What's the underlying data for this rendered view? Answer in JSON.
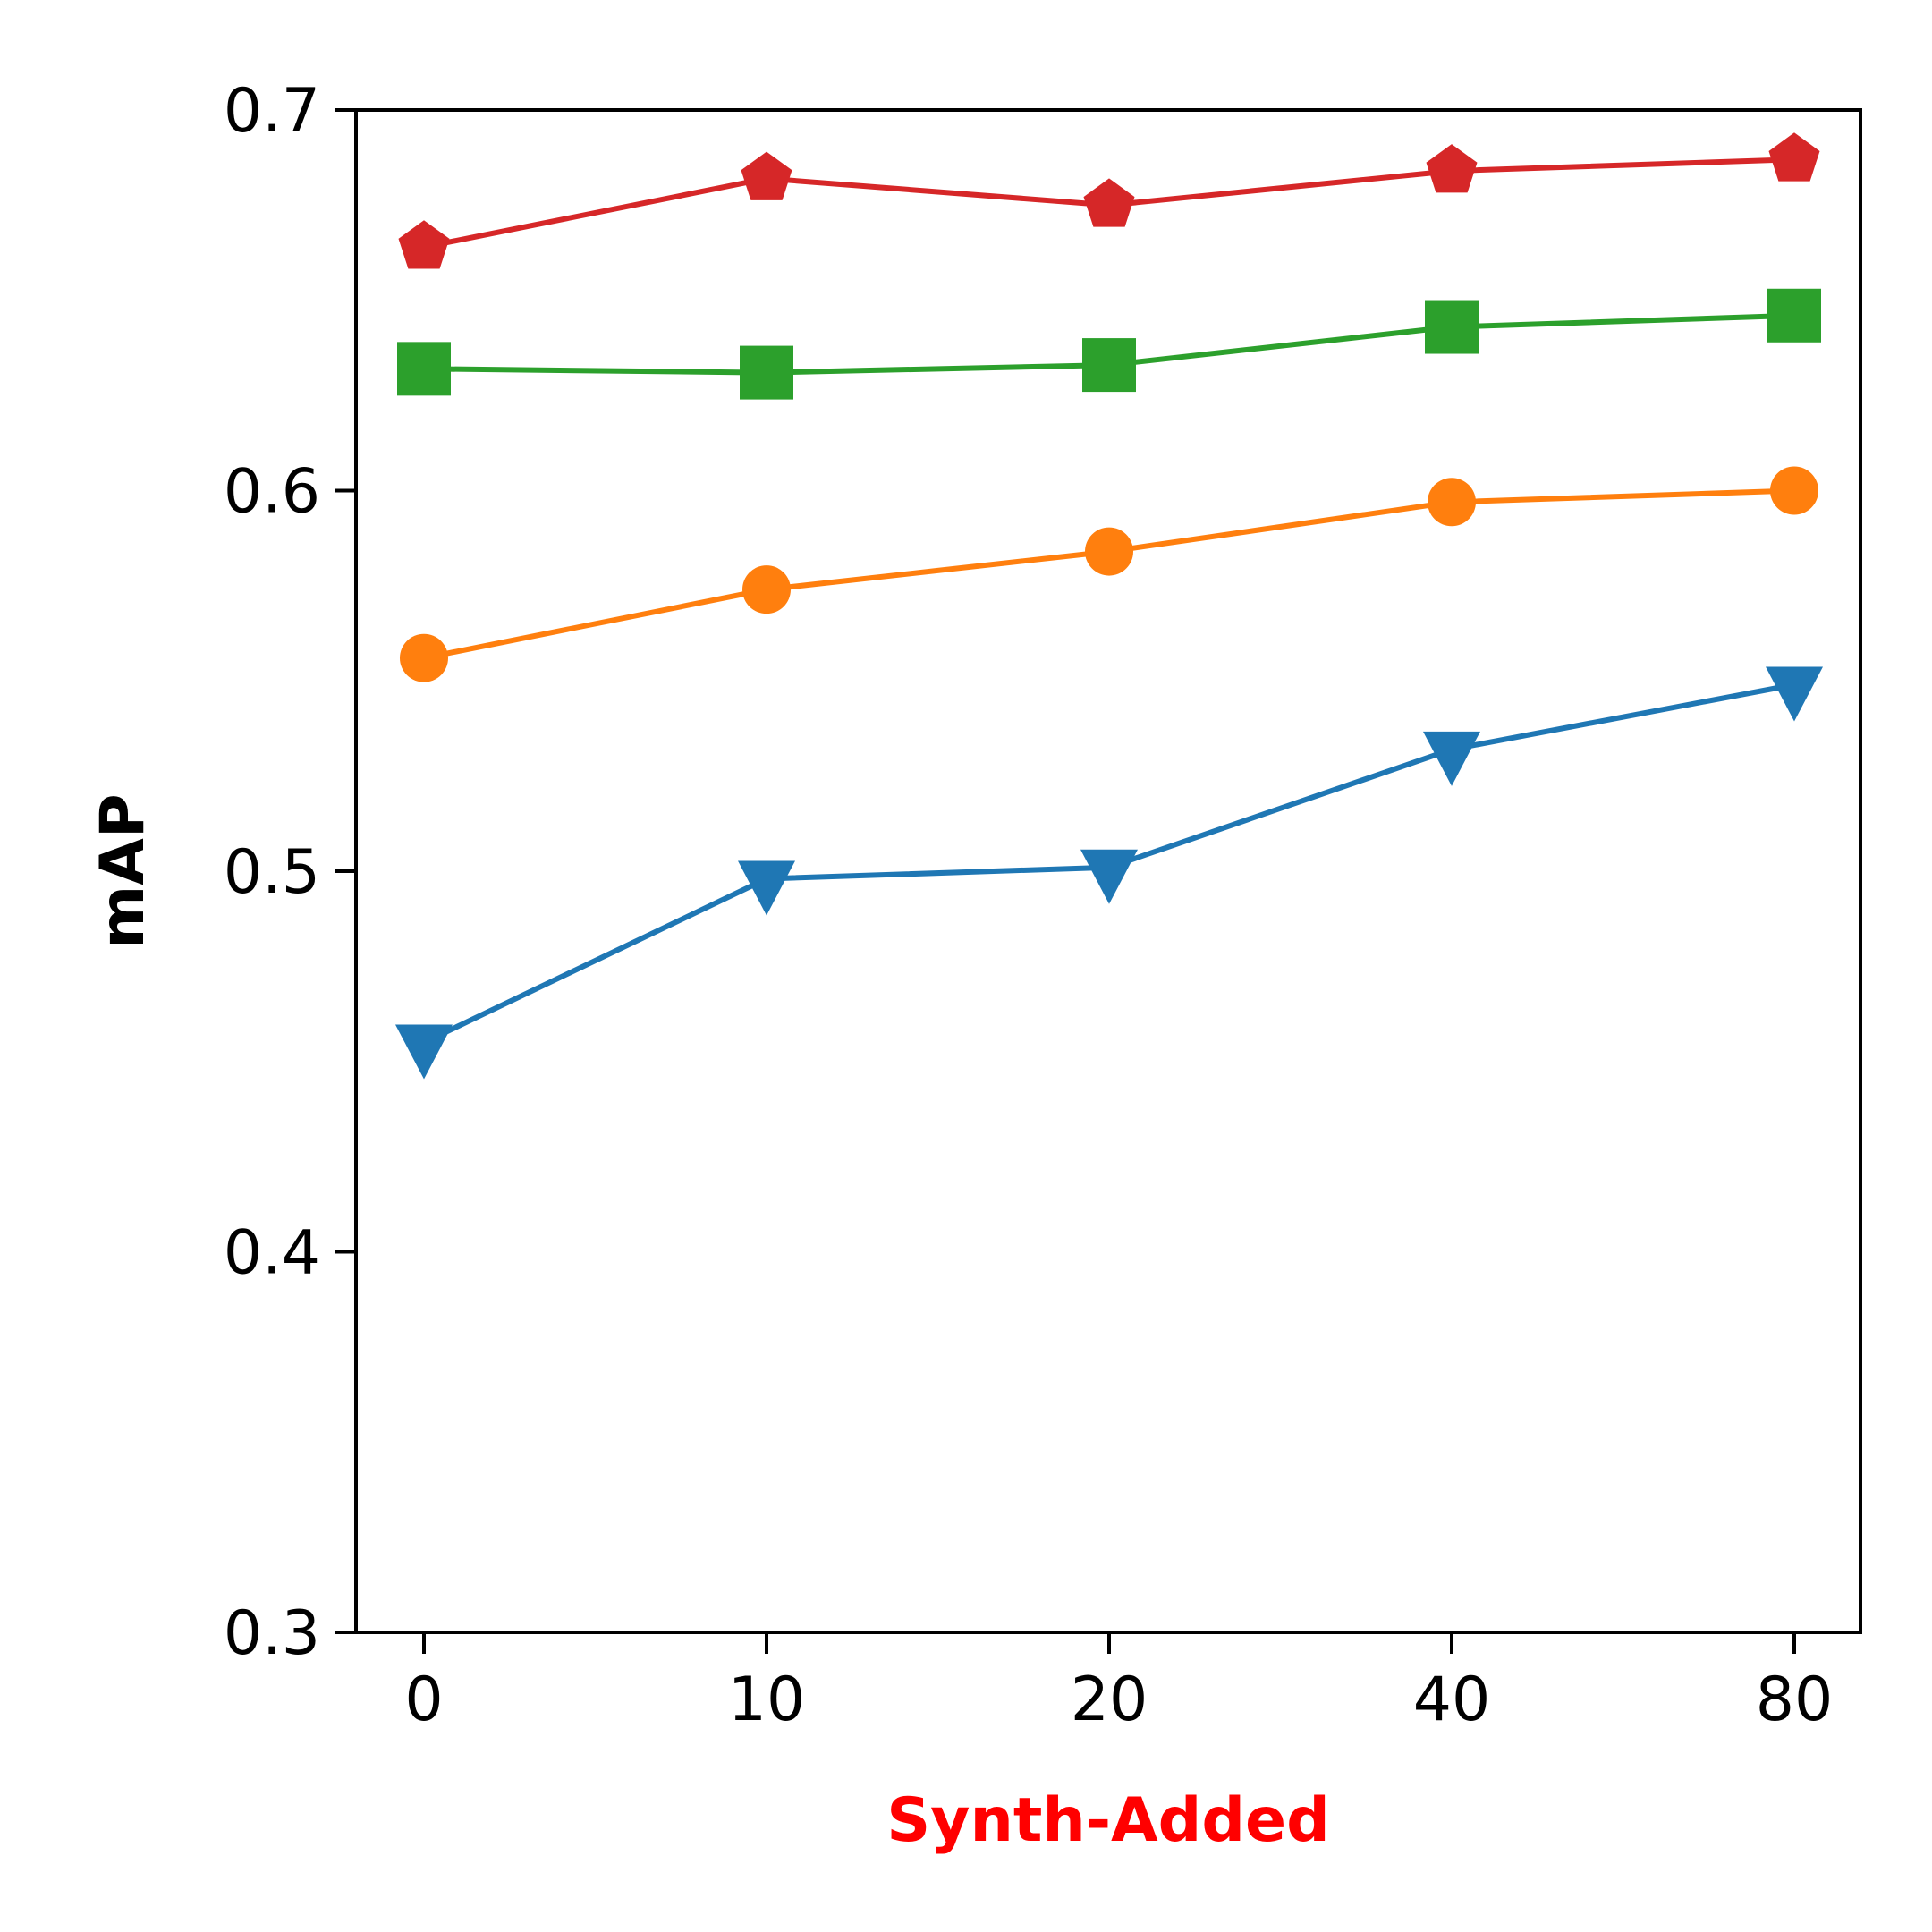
{
  "chart_data": {
    "type": "line",
    "title": "",
    "xlabel": "Synth-Added",
    "ylabel": "mAP",
    "categories": [
      "0",
      "10",
      "20",
      "40",
      "80"
    ],
    "ylim": [
      0.3,
      0.7
    ],
    "yticks": [
      "0.3",
      "0.4",
      "0.5",
      "0.6",
      "0.7"
    ],
    "grid": false,
    "legend": "none",
    "colors": {
      "xlabel": "#ff0000",
      "ylabel": "#000000"
    },
    "series": [
      {
        "marker": "pentagon",
        "color": "#d62728",
        "values": [
          0.664,
          0.682,
          0.675,
          0.684,
          0.687
        ]
      },
      {
        "marker": "square",
        "color": "#2ca02c",
        "values": [
          0.632,
          0.631,
          0.633,
          0.643,
          0.646
        ]
      },
      {
        "marker": "circle",
        "color": "#ff7f0e",
        "values": [
          0.556,
          0.574,
          0.584,
          0.597,
          0.6
        ]
      },
      {
        "marker": "triangle-down",
        "color": "#1f77b4",
        "values": [
          0.455,
          0.498,
          0.501,
          0.532,
          0.549
        ]
      }
    ]
  }
}
